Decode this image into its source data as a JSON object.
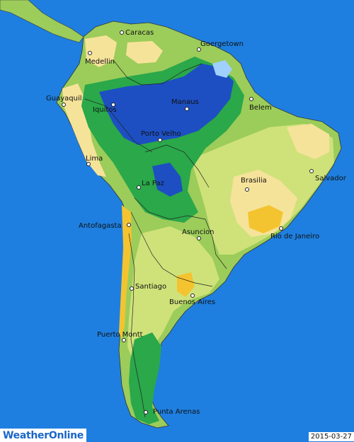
{
  "brand": {
    "name": "WeatherOnline"
  },
  "date": "2015-03-27",
  "colors": {
    "ocean": "#1e7fe0",
    "very_dry": "#f4c430",
    "dry": "#f6e39a",
    "light": "#cfe27a",
    "moderate": "#9ccc5a",
    "wet": "#2aa84a",
    "very_wet": "#1d4fc2",
    "extreme": "#9fd0ff"
  },
  "cities": [
    {
      "name": "Caracas"
    },
    {
      "name": "Goergetown"
    },
    {
      "name": "Medellin"
    },
    {
      "name": "Guayaquil"
    },
    {
      "name": "Iquitos"
    },
    {
      "name": "Manaus"
    },
    {
      "name": "Belem"
    },
    {
      "name": "Porto Velho"
    },
    {
      "name": "Lima"
    },
    {
      "name": "Salvador"
    },
    {
      "name": "Brasilia"
    },
    {
      "name": "La Paz"
    },
    {
      "name": "Antofagasta"
    },
    {
      "name": "Asuncion"
    },
    {
      "name": "Rio de Janeiro"
    },
    {
      "name": "Santiago"
    },
    {
      "name": "Buenos Aires"
    },
    {
      "name": "Puerto Montt"
    },
    {
      "name": "Punta Arenas"
    }
  ]
}
